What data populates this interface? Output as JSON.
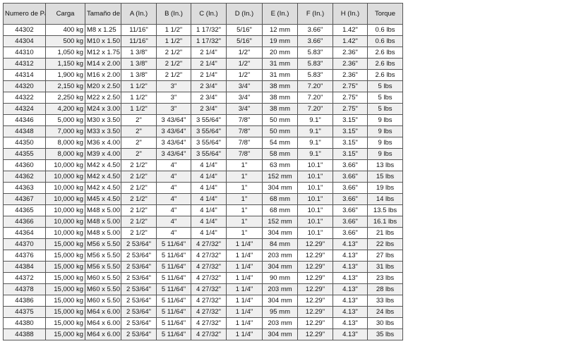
{
  "table": {
    "headers": [
      "Numero de Parte",
      "Carga",
      "Tamaño de Rosca",
      "A (In.)",
      "B (In.)",
      "C (In.)",
      "D (In.)",
      "E (In.)",
      "F (In.)",
      "H (In.)",
      "Torque"
    ],
    "rows": [
      [
        "44302",
        "400 kg",
        "M8 x 1.25",
        "11/16\"",
        "1 1/2\"",
        "1 17/32\"",
        "5/16\"",
        "12 mm",
        "3.66\"",
        "1.42\"",
        "0.6 lbs"
      ],
      [
        "44304",
        "500 kg",
        "M10 x 1.50",
        "11/16\"",
        "1 1/2\"",
        "1 17/32\"",
        "5/16\"",
        "19 mm",
        "3.66\"",
        "1.42\"",
        "0.6 lbs"
      ],
      [
        "44310",
        "1,050 kg",
        "M12 x 1.75",
        "1 3/8\"",
        "2 1/2\"",
        "2 1/4\"",
        "1/2\"",
        "20 mm",
        "5.83\"",
        "2.36\"",
        "2.6 lbs"
      ],
      [
        "44312",
        "1,150 kg",
        "M14 x 2.00",
        "1 3/8\"",
        "2 1/2\"",
        "2 1/4\"",
        "1/2\"",
        "31 mm",
        "5.83\"",
        "2.36\"",
        "2.6 lbs"
      ],
      [
        "44314",
        "1,900 kg",
        "M16 x 2.00",
        "1 3/8\"",
        "2 1/2\"",
        "2 1/4\"",
        "1/2\"",
        "31 mm",
        "5.83\"",
        "2.36\"",
        "2.6 lbs"
      ],
      [
        "44320",
        "2,150 kg",
        "M20 x 2.50",
        "1 1/2\"",
        "3\"",
        "2 3/4\"",
        "3/4\"",
        "38 mm",
        "7.20\"",
        "2.75\"",
        "5 lbs"
      ],
      [
        "44322",
        "2,250 kg",
        "M22 x 2.50",
        "1 1/2\"",
        "3\"",
        "2 3/4\"",
        "3/4\"",
        "38 mm",
        "7.20\"",
        "2.75\"",
        "5 lbs"
      ],
      [
        "44324",
        "4,200 kg",
        "M24 x 3.00",
        "1 1/2\"",
        "3\"",
        "2 3/4\"",
        "3/4\"",
        "38 mm",
        "7.20\"",
        "2.75\"",
        "5 lbs"
      ],
      [
        "44346",
        "5,000 kg",
        "M30 x 3.50",
        "2\"",
        "3 43/64\"",
        "3 55/64\"",
        "7/8\"",
        "50 mm",
        "9.1\"",
        "3.15\"",
        "9 lbs"
      ],
      [
        "44348",
        "7,000 kg",
        "M33 x 3.50",
        "2\"",
        "3 43/64\"",
        "3 55/64\"",
        "7/8\"",
        "50 mm",
        "9.1\"",
        "3.15\"",
        "9 lbs"
      ],
      [
        "44350",
        "8,000 kg",
        "M36 x 4.00",
        "2\"",
        "3 43/64\"",
        "3 55/64\"",
        "7/8\"",
        "54 mm",
        "9.1\"",
        "3.15\"",
        "9 lbs"
      ],
      [
        "44355",
        "8,000 kg",
        "M39 x 4.00",
        "2\"",
        "3 43/64\"",
        "3 55/64\"",
        "7/8\"",
        "58 mm",
        "9.1\"",
        "3.15\"",
        "9 lbs"
      ],
      [
        "44360",
        "10,000 kg",
        "M42 x 4.50",
        "2 1/2\"",
        "4\"",
        "4 1/4\"",
        "1\"",
        "63 mm",
        "10.1\"",
        "3.66\"",
        "13 lbs"
      ],
      [
        "44362",
        "10,000 kg",
        "M42 x 4.50",
        "2 1/2\"",
        "4\"",
        "4 1/4\"",
        "1\"",
        "152 mm",
        "10.1\"",
        "3.66\"",
        "15 lbs"
      ],
      [
        "44363",
        "10,000 kg",
        "M42 x 4.50",
        "2 1/2\"",
        "4\"",
        "4 1/4\"",
        "1\"",
        "304 mm",
        "10.1\"",
        "3.66\"",
        "19 lbs"
      ],
      [
        "44367",
        "10,000 kg",
        "M45 x 4.50",
        "2 1/2\"",
        "4\"",
        "4 1/4\"",
        "1\"",
        "68 mm",
        "10.1\"",
        "3.66\"",
        "14 lbs"
      ],
      [
        "44365",
        "10,000 kg",
        "M48 x 5.00",
        "2 1/2\"",
        "4\"",
        "4 1/4\"",
        "1\"",
        "68 mm",
        "10.1\"",
        "3.66\"",
        "13.5 lbs"
      ],
      [
        "44366",
        "10,000 kg",
        "M48 x 5.00",
        "2 1/2\"",
        "4\"",
        "4 1/4\"",
        "1\"",
        "152 mm",
        "10.1\"",
        "3.66\"",
        "16.1 lbs"
      ],
      [
        "44364",
        "10,000 kg",
        "M48 x 5.00",
        "2 1/2\"",
        "4\"",
        "4 1/4\"",
        "1\"",
        "304 mm",
        "10.1\"",
        "3.66\"",
        "21 lbs"
      ],
      [
        "44370",
        "15,000 kg",
        "M56 x 5.50",
        "2 53/64\"",
        "5 11/64\"",
        "4 27/32\"",
        "1 1/4\"",
        "84 mm",
        "12.29\"",
        "4.13\"",
        "22 lbs"
      ],
      [
        "44376",
        "15,000 kg",
        "M56 x 5.50",
        "2 53/64\"",
        "5 11/64\"",
        "4 27/32\"",
        "1 1/4\"",
        "203 mm",
        "12.29\"",
        "4.13\"",
        "27 lbs"
      ],
      [
        "44384",
        "15,000 kg",
        "M56 x 5.50",
        "2 53/64\"",
        "5 11/64\"",
        "4 27/32\"",
        "1 1/4\"",
        "304 mm",
        "12.29\"",
        "4.13\"",
        "31 lbs"
      ],
      [
        "44372",
        "15,000 kg",
        "M60 x 5.50",
        "2 53/64\"",
        "5 11/64\"",
        "4 27/32\"",
        "1 1/4\"",
        "90 mm",
        "12.29\"",
        "4.13\"",
        "23 lbs"
      ],
      [
        "44378",
        "15,000 kg",
        "M60 x 5.50",
        "2 53/64\"",
        "5 11/64\"",
        "4 27/32\"",
        "1 1/4\"",
        "203 mm",
        "12.29\"",
        "4.13\"",
        "28 lbs"
      ],
      [
        "44386",
        "15,000 kg",
        "M60 x 5.50",
        "2 53/64\"",
        "5 11/64\"",
        "4 27/32\"",
        "1 1/4\"",
        "304 mm",
        "12.29\"",
        "4.13\"",
        "33 lbs"
      ],
      [
        "44375",
        "15,000 kg",
        "M64 x 6.00",
        "2 53/64\"",
        "5 11/64\"",
        "4 27/32\"",
        "1 1/4\"",
        "95 mm",
        "12.29\"",
        "4.13\"",
        "24 lbs"
      ],
      [
        "44380",
        "15,000 kg",
        "M64 x 6.00",
        "2 53/64\"",
        "5 11/64\"",
        "4 27/32\"",
        "1 1/4\"",
        "203 mm",
        "12.29\"",
        "4.13\"",
        "30 lbs"
      ],
      [
        "44388",
        "15,000 kg",
        "M64 x 6.00",
        "2 53/64\"",
        "5 11/64\"",
        "4 27/32\"",
        "1 1/4\"",
        "304 mm",
        "12.29\"",
        "4.13\"",
        "35 lbs"
      ]
    ]
  }
}
